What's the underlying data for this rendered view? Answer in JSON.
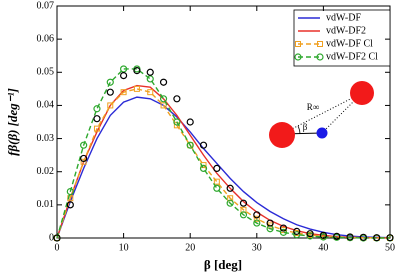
{
  "chart_data": {
    "type": "line",
    "x_label": "β [deg]",
    "y_label": "fβ(β) [deg⁻¹]",
    "x": [
      0,
      2,
      4,
      6,
      8,
      10,
      12,
      14,
      16,
      18,
      20,
      22,
      24,
      26,
      28,
      30,
      32,
      34,
      36,
      38,
      40,
      42,
      44,
      46,
      48,
      50
    ],
    "xlim": [
      0,
      50
    ],
    "xticks": [
      0,
      10,
      20,
      30,
      40,
      50
    ],
    "ylim": [
      0,
      0.07
    ],
    "yticks": [
      0,
      0.01,
      0.02,
      0.03,
      0.04,
      0.05,
      0.06,
      0.07
    ],
    "legend": "upper right",
    "annotations": [
      "R∞",
      "β"
    ],
    "series": [
      {
        "name": "vdW-DF",
        "color": "#2b2bd6",
        "dashed": false,
        "marker": "none",
        "values": [
          0,
          0.011,
          0.021,
          0.03,
          0.037,
          0.041,
          0.0425,
          0.042,
          0.04,
          0.0365,
          0.032,
          0.027,
          0.0225,
          0.018,
          0.014,
          0.0107,
          0.008,
          0.0058,
          0.004,
          0.0027,
          0.0017,
          0.001,
          0.0006,
          0.0003,
          0.0002,
          0.0001
        ]
      },
      {
        "name": "vdW-DF2",
        "color": "#e8302a",
        "dashed": false,
        "marker": "none",
        "values": [
          0,
          0.012,
          0.023,
          0.032,
          0.04,
          0.0445,
          0.046,
          0.0455,
          0.042,
          0.037,
          0.031,
          0.025,
          0.0195,
          0.015,
          0.011,
          0.0078,
          0.0053,
          0.0035,
          0.0022,
          0.0013,
          0.0008,
          0.0004,
          0.0002,
          0.0001,
          0.0001,
          0
        ]
      },
      {
        "name": "vdW-DF Cl",
        "color": "#f0a020",
        "dashed": true,
        "marker": "square",
        "values": [
          0,
          0.012,
          0.023,
          0.033,
          0.04,
          0.044,
          0.045,
          0.044,
          0.04,
          0.034,
          0.028,
          0.022,
          0.017,
          0.012,
          0.0085,
          0.0058,
          0.0038,
          0.0024,
          0.0015,
          0.0009,
          0.0005,
          0.0003,
          0.0002,
          0.0001,
          0,
          0
        ]
      },
      {
        "name": "vdW-DF2 Cl",
        "color": "#2ea82e",
        "dashed": true,
        "marker": "circle",
        "values": [
          0,
          0.014,
          0.028,
          0.039,
          0.047,
          0.051,
          0.051,
          0.048,
          0.042,
          0.035,
          0.028,
          0.021,
          0.015,
          0.0105,
          0.007,
          0.0045,
          0.0028,
          0.0017,
          0.001,
          0.0006,
          0.0003,
          0.0002,
          0.0001,
          0,
          0,
          0
        ]
      },
      {
        "color": "#000000",
        "dashed": false,
        "marker": "circle-only",
        "values": [
          0,
          0.01,
          0.024,
          0.036,
          0.044,
          0.049,
          0.0505,
          0.05,
          0.047,
          0.042,
          0.035,
          0.028,
          0.021,
          0.015,
          0.0105,
          0.007,
          0.0045,
          0.003,
          0.002,
          0.0013,
          0.0008,
          0.0005,
          0.0003,
          0.0002,
          0.0001,
          0.0001
        ]
      }
    ]
  }
}
